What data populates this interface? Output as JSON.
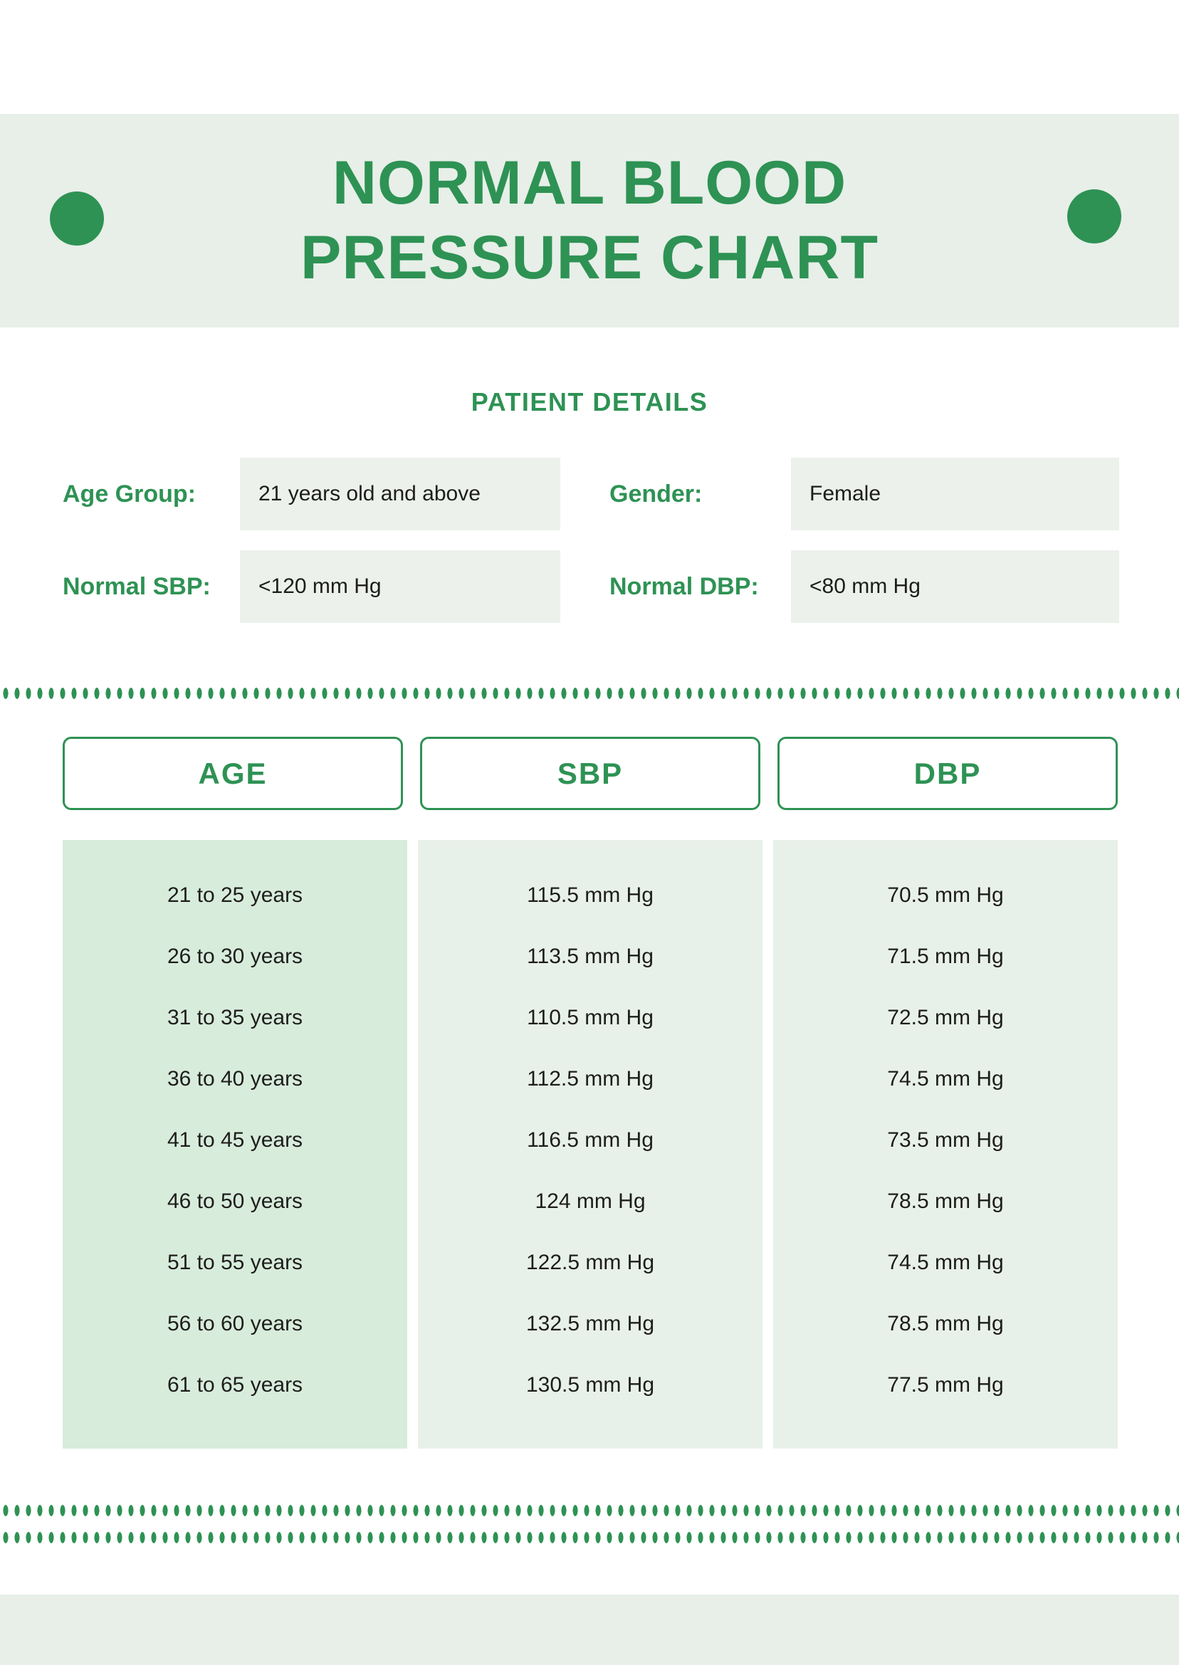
{
  "header": {
    "title_line1": "NORMAL BLOOD",
    "title_line2": "PRESSURE CHART"
  },
  "patient_details": {
    "heading": "PATIENT DETAILS",
    "fields": [
      {
        "label": "Age Group:",
        "value": "21 years old and above"
      },
      {
        "label": "Gender:",
        "value": "Female"
      },
      {
        "label": "Normal SBP:",
        "value": "<120 mm Hg"
      },
      {
        "label": "Normal DBP:",
        "value": "<80 mm Hg"
      }
    ]
  },
  "table": {
    "columns": [
      "AGE",
      "SBP",
      "DBP"
    ],
    "rows": [
      [
        "21 to 25 years",
        "115.5 mm Hg",
        "70.5 mm Hg"
      ],
      [
        "26 to 30 years",
        "113.5 mm Hg",
        "71.5 mm Hg"
      ],
      [
        "31 to 35 years",
        "110.5 mm Hg",
        "72.5 mm Hg"
      ],
      [
        "36 to 40 years",
        "112.5 mm Hg",
        "74.5 mm Hg"
      ],
      [
        "41 to 45 years",
        "116.5 mm Hg",
        "73.5 mm Hg"
      ],
      [
        "46 to 50 years",
        "124 mm Hg",
        "78.5 mm Hg"
      ],
      [
        "51 to 55 years",
        "122.5 mm Hg",
        "74.5 mm Hg"
      ],
      [
        "56 to 60 years",
        "132.5 mm Hg",
        "78.5 mm Hg"
      ],
      [
        "61 to 65 years",
        "130.5 mm Hg",
        "77.5 mm Hg"
      ]
    ]
  },
  "colors": {
    "accent_green": "#2e9254",
    "band_bg": "#e7efe8",
    "field_box_bg": "#ecf1ec",
    "age_column_bg": "#d8ecdb",
    "value_column_bg": "#e8f1e9",
    "text_dark": "#1d1d1b"
  }
}
